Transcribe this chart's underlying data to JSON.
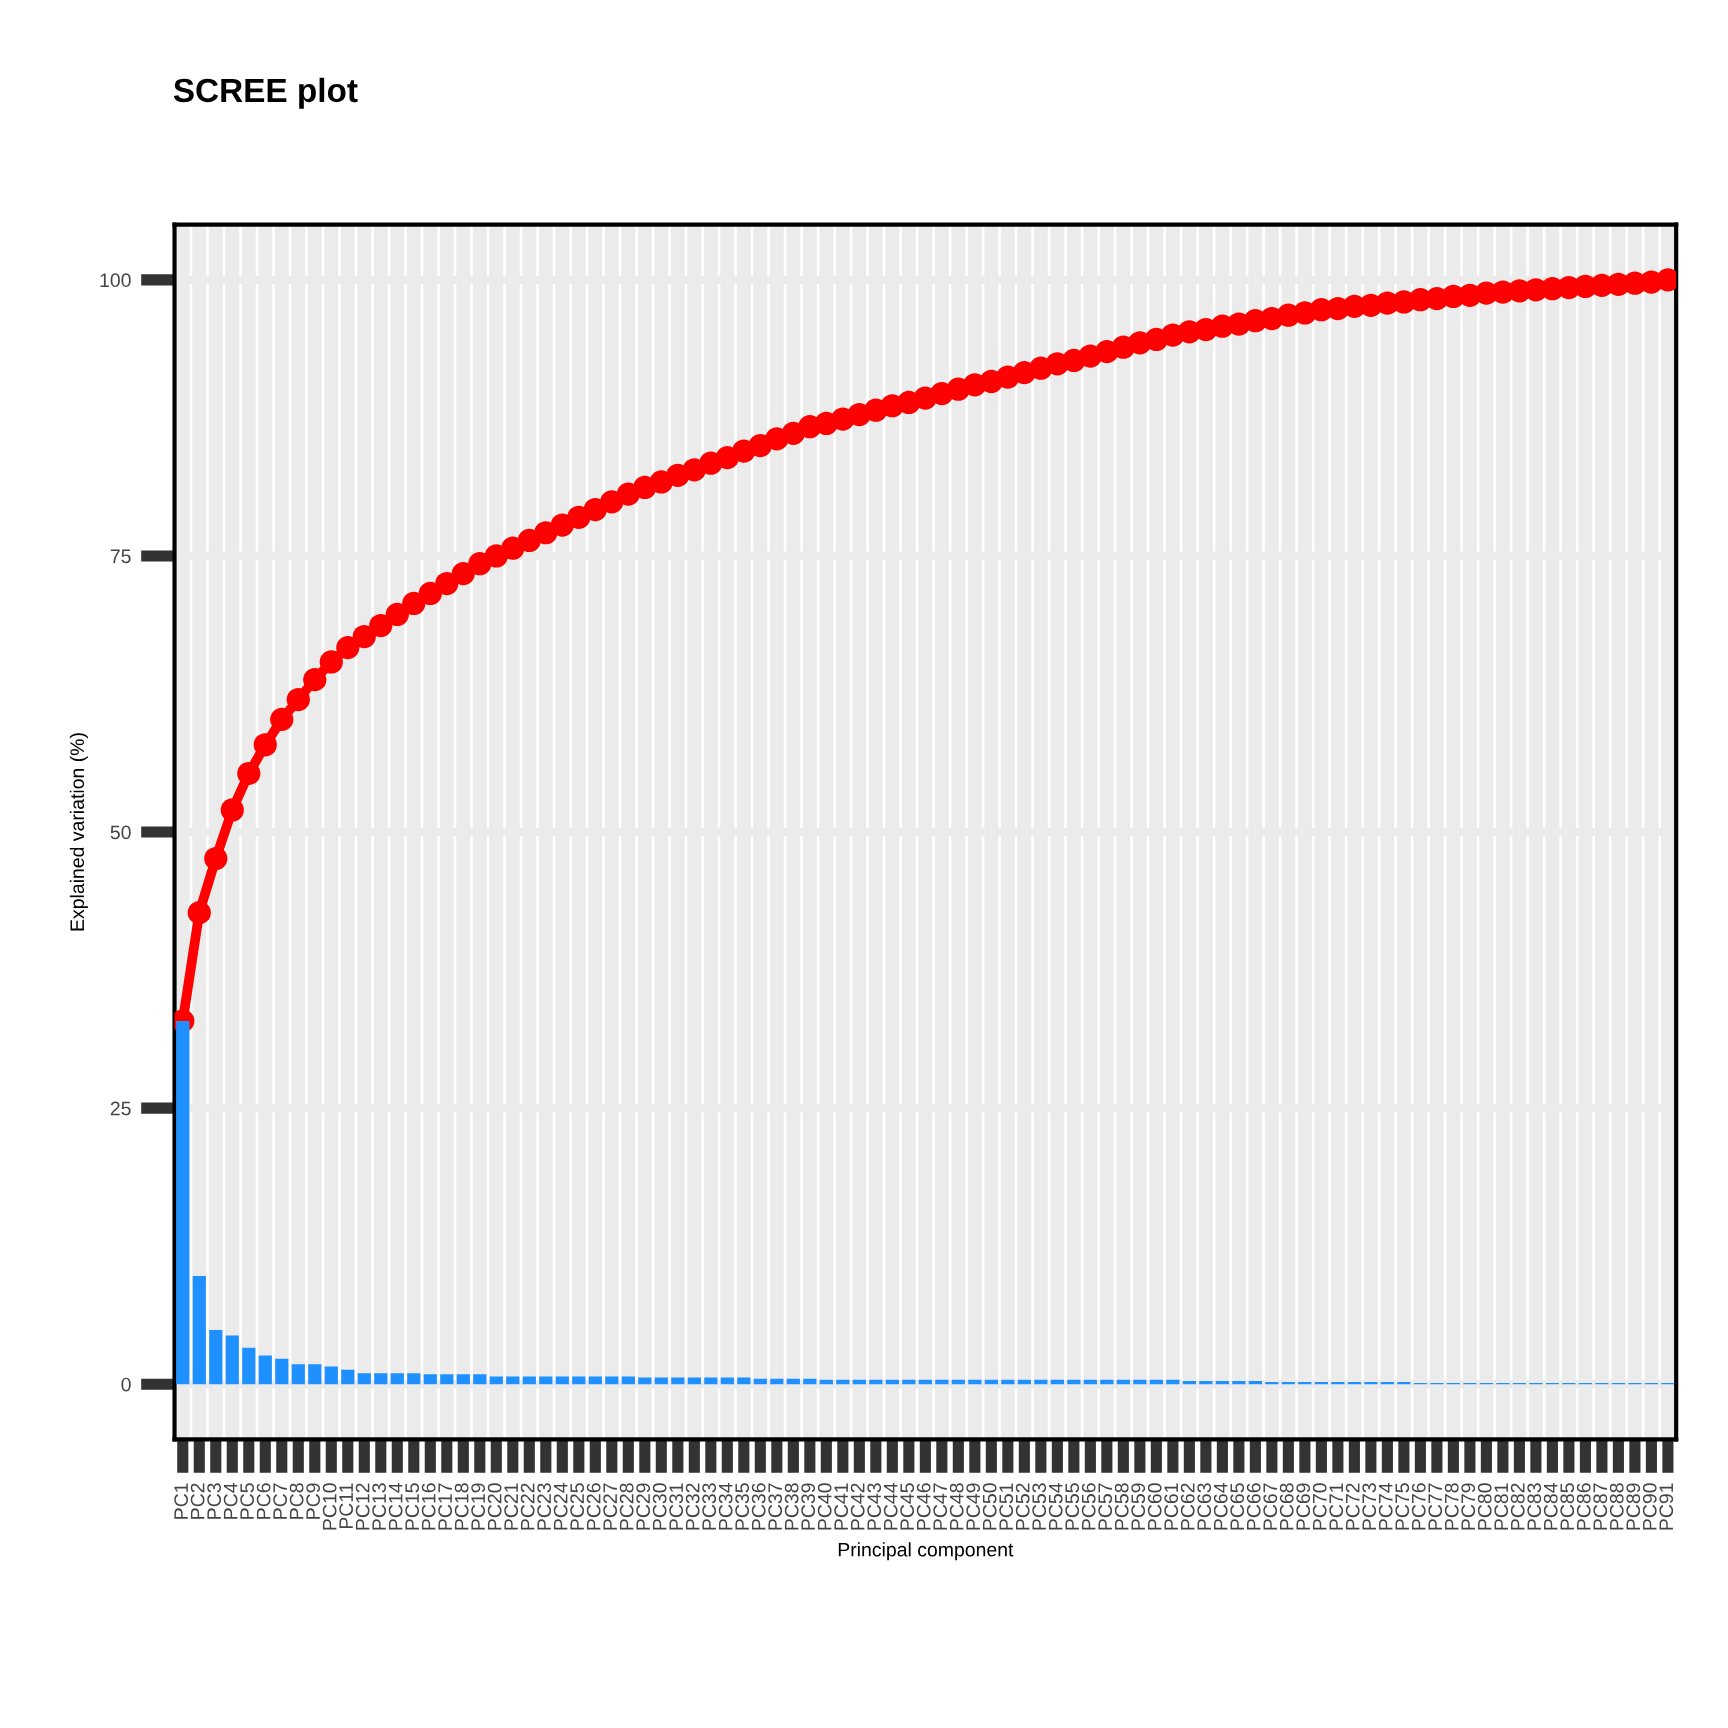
{
  "chart_data": {
    "type": "bar",
    "title": "SCREE plot",
    "xlabel": "Principal component",
    "ylabel": "Explained variation (%)",
    "categories": [
      "PC1",
      "PC2",
      "PC3",
      "PC4",
      "PC5",
      "PC6",
      "PC7",
      "PC8",
      "PC9",
      "PC10",
      "PC11",
      "PC12",
      "PC13",
      "PC14",
      "PC15",
      "PC16",
      "PC17",
      "PC18",
      "PC19",
      "PC20",
      "PC21",
      "PC22",
      "PC23",
      "PC24",
      "PC25",
      "PC26",
      "PC27",
      "PC28",
      "PC29",
      "PC30",
      "PC31",
      "PC32",
      "PC33",
      "PC34",
      "PC35",
      "PC36",
      "PC37",
      "PC38",
      "PC39",
      "PC40",
      "PC41",
      "PC42",
      "PC43",
      "PC44",
      "PC45",
      "PC46",
      "PC47",
      "PC48",
      "PC49",
      "PC50",
      "PC51",
      "PC52",
      "PC53",
      "PC54",
      "PC55",
      "PC56",
      "PC57",
      "PC58",
      "PC59",
      "PC60",
      "PC61",
      "PC62",
      "PC63",
      "PC64",
      "PC65",
      "PC66",
      "PC67",
      "PC68",
      "PC69",
      "PC70",
      "PC71",
      "PC72",
      "PC73",
      "PC74",
      "PC75",
      "PC76",
      "PC77",
      "PC78",
      "PC79",
      "PC80",
      "PC81",
      "PC82",
      "PC83",
      "PC84",
      "PC85",
      "PC86",
      "PC87",
      "PC88",
      "PC89",
      "PC90",
      "PC91"
    ],
    "series": [
      {
        "color": "#1e90ff",
        "values": [
          32.9,
          9.8,
          4.9,
          4.4,
          3.3,
          2.6,
          2.3,
          1.8,
          1.8,
          1.6,
          1.3,
          1.0,
          1.0,
          1.0,
          1.0,
          0.9,
          0.9,
          0.9,
          0.9,
          0.7,
          0.7,
          0.7,
          0.7,
          0.7,
          0.7,
          0.7,
          0.7,
          0.7,
          0.6,
          0.6,
          0.6,
          0.6,
          0.6,
          0.6,
          0.6,
          0.5,
          0.5,
          0.5,
          0.5,
          0.4,
          0.4,
          0.4,
          0.4,
          0.4,
          0.4,
          0.4,
          0.4,
          0.4,
          0.4,
          0.4,
          0.4,
          0.4,
          0.4,
          0.4,
          0.4,
          0.4,
          0.4,
          0.4,
          0.4,
          0.4,
          0.4,
          0.3,
          0.3,
          0.3,
          0.3,
          0.3,
          0.2,
          0.2,
          0.2,
          0.2,
          0.2,
          0.2,
          0.2,
          0.2,
          0.2,
          0.1,
          0.1,
          0.1,
          0.1,
          0.1,
          0.1,
          0.1,
          0.1,
          0.1,
          0.1,
          0.1,
          0.1,
          0.1,
          0.1,
          0.1,
          0.1
        ]
      },
      {
        "type": "line",
        "color": "#ff0000",
        "marker": "circle",
        "line_style": "solid",
        "values": [
          32.9,
          42.7,
          47.6,
          52.0,
          55.3,
          57.9,
          60.2,
          62.0,
          63.8,
          65.4,
          66.7,
          67.7,
          68.7,
          69.7,
          70.7,
          71.6,
          72.5,
          73.4,
          74.3,
          75.0,
          75.7,
          76.4,
          77.1,
          77.8,
          78.5,
          79.2,
          79.9,
          80.6,
          81.2,
          81.7,
          82.3,
          82.8,
          83.4,
          83.9,
          84.5,
          85.0,
          85.6,
          86.1,
          86.7,
          87.0,
          87.4,
          87.8,
          88.2,
          88.6,
          88.9,
          89.3,
          89.7,
          90.1,
          90.5,
          90.8,
          91.2,
          91.6,
          92.0,
          92.4,
          92.7,
          93.1,
          93.5,
          93.9,
          94.3,
          94.6,
          95.0,
          95.3,
          95.5,
          95.8,
          96.0,
          96.3,
          96.5,
          96.8,
          97.0,
          97.3,
          97.4,
          97.6,
          97.7,
          97.9,
          98.0,
          98.2,
          98.3,
          98.5,
          98.6,
          98.8,
          98.9,
          99.0,
          99.1,
          99.2,
          99.3,
          99.4,
          99.5,
          99.6,
          99.7,
          99.8,
          100.0
        ]
      }
    ],
    "ylim": [
      -5,
      105
    ],
    "yticks": [
      0,
      25,
      50,
      75,
      100
    ],
    "grid": true
  }
}
